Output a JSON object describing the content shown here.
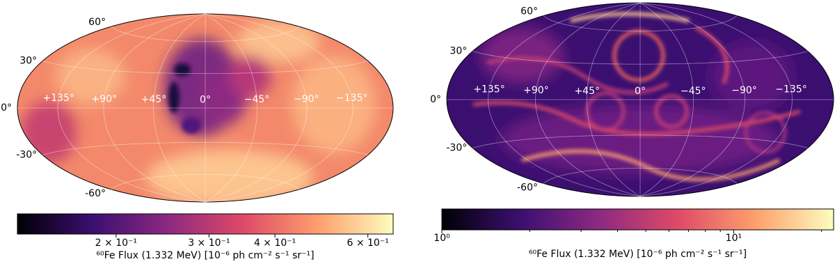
{
  "chart_data": [
    {
      "type": "skymap",
      "colormap": [
        "#000004",
        "#3b0f70",
        "#8c2981",
        "#de4968",
        "#fe9f6d",
        "#fcfdbf"
      ],
      "lon_labels": [
        "+135°",
        "+90°",
        "+45°",
        "0°",
        "−45°",
        "−90°",
        "−135°"
      ],
      "lat_labels": [
        "60°",
        "30°",
        "0°",
        "-30°",
        "-60°"
      ],
      "colorbar_label": "⁶⁰Fe Flux (1.332 MeV) [10⁻⁶ ph cm⁻² s⁻¹ sr⁻¹]",
      "log_scale": true,
      "xlim": [
        0.13,
        0.67
      ],
      "xticks": [
        {
          "value": 0.2,
          "label": "2 × 10⁻¹"
        },
        {
          "value": 0.3,
          "label": "3 × 10⁻¹"
        },
        {
          "value": 0.4,
          "label": "4 × 10⁻¹"
        },
        {
          "value": 0.6,
          "label": "6 × 10⁻¹"
        }
      ]
    },
    {
      "type": "skymap",
      "colormap": [
        "#000004",
        "#3b0f70",
        "#8c2981",
        "#de4968",
        "#fe9f6d",
        "#fcfdbf"
      ],
      "lon_labels": [
        "+135°",
        "+90°",
        "+45°",
        "0°",
        "−45°",
        "−90°",
        "−135°"
      ],
      "lat_labels": [
        "60°",
        "30°",
        "0°",
        "-30°",
        "-60°"
      ],
      "colorbar_label": "⁶⁰Fe Flux (1.332 MeV) [10⁻⁶ ph cm⁻² s⁻¹ sr⁻¹]",
      "log_scale": true,
      "xlim": [
        1,
        22
      ],
      "xticks": [
        {
          "value": 1,
          "label": "10⁰"
        },
        {
          "value": 10,
          "label": "10¹"
        }
      ],
      "minor_xticks": [
        2,
        3,
        4,
        5,
        6,
        7,
        8,
        9,
        20
      ]
    }
  ]
}
